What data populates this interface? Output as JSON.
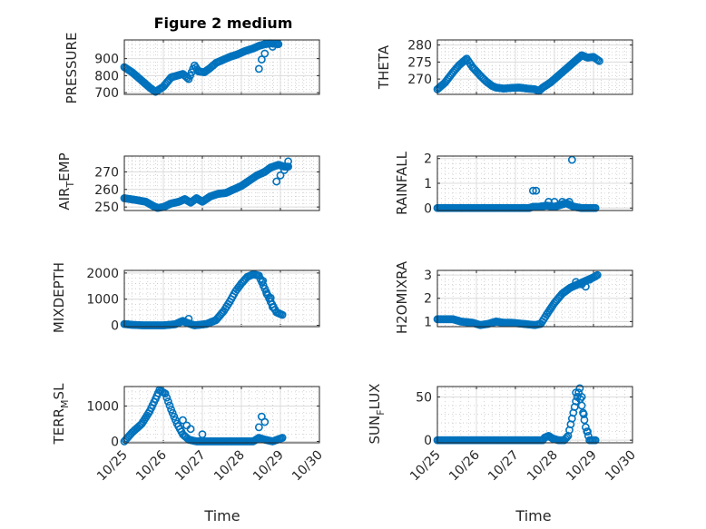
{
  "figure": {
    "title": "Figure 2 medium",
    "marker_color": "#0072bd",
    "x_tick_labels": [
      "10/25",
      "10/26",
      "10/27",
      "10/28",
      "10/29",
      "10/30"
    ],
    "x_label": "Time"
  },
  "chart_data": [
    {
      "type": "scatter",
      "id": "pressure",
      "title": "Figure 2 medium",
      "ylabel": "PRESSURE",
      "xlabel": "",
      "xlim": [
        25,
        30
      ],
      "ylim": [
        690,
        1010
      ],
      "yticks": [
        700,
        800,
        900
      ],
      "ytick_labels": [
        "700",
        "800",
        "900"
      ],
      "grid": true,
      "anchors": [
        [
          25.0,
          850
        ],
        [
          25.2,
          820
        ],
        [
          25.45,
          770
        ],
        [
          25.65,
          730
        ],
        [
          25.8,
          705
        ],
        [
          26.0,
          735
        ],
        [
          26.2,
          790
        ],
        [
          26.35,
          800
        ],
        [
          26.5,
          810
        ],
        [
          26.65,
          780
        ],
        [
          26.8,
          860
        ],
        [
          26.9,
          825
        ],
        [
          27.05,
          820
        ],
        [
          27.2,
          845
        ],
        [
          27.35,
          875
        ],
        [
          27.5,
          890
        ],
        [
          27.7,
          910
        ],
        [
          27.9,
          925
        ],
        [
          28.1,
          945
        ],
        [
          28.3,
          960
        ],
        [
          28.45,
          975
        ],
        [
          28.6,
          985
        ],
        [
          28.75,
          990
        ],
        [
          28.95,
          985
        ]
      ],
      "extra": [
        [
          28.45,
          840
        ],
        [
          28.52,
          895
        ],
        [
          28.6,
          930
        ],
        [
          28.7,
          990
        ],
        [
          28.8,
          970
        ]
      ]
    },
    {
      "type": "scatter",
      "id": "theta",
      "title": "",
      "ylabel": "THETA",
      "xlabel": "",
      "xlim": [
        25,
        30
      ],
      "ylim": [
        265.5,
        281.5
      ],
      "yticks": [
        270,
        275,
        280
      ],
      "ytick_labels": [
        "270",
        "275",
        "280"
      ],
      "grid": true,
      "anchors": [
        [
          25.0,
          267
        ],
        [
          25.2,
          269
        ],
        [
          25.4,
          272
        ],
        [
          25.55,
          274
        ],
        [
          25.75,
          276
        ],
        [
          25.9,
          273.5
        ],
        [
          26.1,
          271
        ],
        [
          26.25,
          269.3
        ],
        [
          26.4,
          268
        ],
        [
          26.5,
          267.5
        ],
        [
          26.7,
          267.2
        ],
        [
          26.9,
          267.4
        ],
        [
          27.1,
          267.5
        ],
        [
          27.3,
          267.2
        ],
        [
          27.5,
          267
        ],
        [
          27.6,
          266.5
        ],
        [
          27.7,
          267.5
        ],
        [
          27.9,
          269
        ],
        [
          28.1,
          271
        ],
        [
          28.3,
          273
        ],
        [
          28.5,
          275
        ],
        [
          28.7,
          277
        ],
        [
          28.85,
          276.3
        ],
        [
          29.0,
          276.5
        ],
        [
          29.15,
          275.3
        ]
      ],
      "extra": []
    },
    {
      "type": "scatter",
      "id": "air_temp",
      "title": "",
      "ylabel": "AIR_TEMP",
      "xlabel": "",
      "xlim": [
        25,
        30
      ],
      "ylim": [
        248,
        279
      ],
      "yticks": [
        250,
        260,
        270
      ],
      "ytick_labels": [
        "250",
        "260",
        "270"
      ],
      "grid": true,
      "anchors": [
        [
          25.0,
          255
        ],
        [
          25.3,
          254
        ],
        [
          25.55,
          253
        ],
        [
          25.75,
          250.5
        ],
        [
          25.85,
          249.5
        ],
        [
          26.0,
          250
        ],
        [
          26.2,
          252
        ],
        [
          26.4,
          253
        ],
        [
          26.55,
          254.5
        ],
        [
          26.7,
          252.5
        ],
        [
          26.85,
          255
        ],
        [
          27.0,
          253
        ],
        [
          27.2,
          256
        ],
        [
          27.4,
          257.5
        ],
        [
          27.6,
          258
        ],
        [
          27.8,
          260
        ],
        [
          28.0,
          262
        ],
        [
          28.2,
          265
        ],
        [
          28.4,
          268
        ],
        [
          28.6,
          270
        ],
        [
          28.75,
          272.5
        ],
        [
          28.95,
          274
        ],
        [
          29.1,
          273
        ],
        [
          29.2,
          273
        ]
      ],
      "extra": [
        [
          28.9,
          264.5
        ],
        [
          29.0,
          268
        ],
        [
          29.1,
          271
        ],
        [
          29.2,
          276
        ]
      ]
    },
    {
      "type": "scatter",
      "id": "rainfall",
      "title": "",
      "ylabel": "RAINFALL",
      "xlabel": "",
      "xlim": [
        25,
        30
      ],
      "ylim": [
        -0.1,
        2.1
      ],
      "yticks": [
        0,
        1,
        2
      ],
      "ytick_labels": [
        "0",
        "1",
        "2"
      ],
      "grid": true,
      "anchors": [
        [
          25.0,
          0
        ],
        [
          27.35,
          0
        ],
        [
          27.45,
          0.05
        ],
        [
          27.6,
          0.05
        ],
        [
          27.8,
          0.1
        ],
        [
          28.0,
          0.05
        ],
        [
          28.3,
          0.2
        ],
        [
          28.5,
          0.05
        ],
        [
          28.7,
          0
        ],
        [
          29.05,
          0
        ]
      ],
      "extra": [
        [
          27.45,
          0.7
        ],
        [
          27.53,
          0.7
        ],
        [
          27.85,
          0.25
        ],
        [
          28.0,
          0.25
        ],
        [
          28.2,
          0.25
        ],
        [
          28.38,
          0.25
        ],
        [
          28.45,
          1.95
        ]
      ]
    },
    {
      "type": "scatter",
      "id": "mixdepth",
      "title": "",
      "ylabel": "MIXDEPTH",
      "xlabel": "",
      "xlim": [
        25,
        30
      ],
      "ylim": [
        -50,
        2100
      ],
      "yticks": [
        0,
        1000,
        2000
      ],
      "ytick_labels": [
        "0",
        "1000",
        "2000"
      ],
      "grid": true,
      "anchors": [
        [
          25.0,
          50
        ],
        [
          25.2,
          20
        ],
        [
          25.5,
          0
        ],
        [
          26.0,
          0
        ],
        [
          26.3,
          40
        ],
        [
          26.5,
          170
        ],
        [
          26.6,
          100
        ],
        [
          26.8,
          0
        ],
        [
          27.1,
          50
        ],
        [
          27.35,
          200
        ],
        [
          27.55,
          550
        ],
        [
          27.7,
          900
        ],
        [
          27.85,
          1300
        ],
        [
          28.0,
          1600
        ],
        [
          28.15,
          1850
        ],
        [
          28.3,
          1950
        ],
        [
          28.45,
          1900
        ],
        [
          28.6,
          1400
        ],
        [
          28.75,
          900
        ],
        [
          28.9,
          500
        ],
        [
          29.05,
          400
        ]
      ],
      "extra": [
        [
          26.65,
          250
        ],
        [
          28.55,
          1700
        ],
        [
          28.65,
          1200
        ],
        [
          28.75,
          1050
        ],
        [
          28.8,
          700
        ]
      ]
    },
    {
      "type": "scatter",
      "id": "h2omixra",
      "title": "",
      "ylabel": "H2OMIXRA",
      "xlabel": "",
      "xlim": [
        25,
        30
      ],
      "ylim": [
        0.78,
        3.2
      ],
      "yticks": [
        1,
        2,
        3
      ],
      "ytick_labels": [
        "1",
        "2",
        "3"
      ],
      "grid": true,
      "anchors": [
        [
          25.0,
          1.1
        ],
        [
          25.4,
          1.1
        ],
        [
          25.6,
          1.0
        ],
        [
          25.9,
          0.95
        ],
        [
          26.1,
          0.85
        ],
        [
          26.3,
          0.9
        ],
        [
          26.5,
          1.0
        ],
        [
          26.7,
          0.95
        ],
        [
          26.9,
          0.95
        ],
        [
          27.2,
          0.9
        ],
        [
          27.5,
          0.85
        ],
        [
          27.65,
          0.9
        ],
        [
          27.8,
          1.3
        ],
        [
          28.0,
          1.8
        ],
        [
          28.2,
          2.2
        ],
        [
          28.4,
          2.45
        ],
        [
          28.6,
          2.6
        ],
        [
          28.8,
          2.75
        ],
        [
          29.0,
          2.9
        ],
        [
          29.1,
          3.0
        ]
      ],
      "extra": [
        [
          28.55,
          2.7
        ],
        [
          28.7,
          2.6
        ],
        [
          28.8,
          2.5
        ],
        [
          28.9,
          2.8
        ]
      ]
    },
    {
      "type": "scatter",
      "id": "terr_msl",
      "title": "",
      "ylabel": "TERR_MSL",
      "xlabel": "",
      "xlim": [
        25,
        30
      ],
      "ylim": [
        -40,
        1550
      ],
      "yticks": [
        0,
        1000
      ],
      "ytick_labels": [
        "0",
        "1000"
      ],
      "grid": true,
      "anchors": [
        [
          25.0,
          0
        ],
        [
          25.2,
          250
        ],
        [
          25.45,
          500
        ],
        [
          25.65,
          850
        ],
        [
          25.8,
          1200
        ],
        [
          25.9,
          1450
        ],
        [
          26.05,
          1350
        ],
        [
          26.2,
          900
        ],
        [
          26.35,
          500
        ],
        [
          26.5,
          200
        ],
        [
          26.65,
          50
        ],
        [
          26.85,
          0
        ],
        [
          27.3,
          0
        ],
        [
          27.8,
          0
        ],
        [
          28.3,
          0
        ],
        [
          28.45,
          100
        ],
        [
          28.6,
          50
        ],
        [
          28.8,
          0
        ],
        [
          29.05,
          100
        ]
      ],
      "extra": [
        [
          26.5,
          600
        ],
        [
          26.6,
          450
        ],
        [
          26.7,
          350
        ],
        [
          27.0,
          200
        ],
        [
          28.45,
          400
        ],
        [
          28.52,
          700
        ],
        [
          28.6,
          550
        ]
      ]
    },
    {
      "type": "scatter",
      "id": "sun_flux",
      "title": "",
      "ylabel": "SUN_FLUX",
      "xlabel": "Time",
      "xlim": [
        25,
        30
      ],
      "ylim": [
        -3,
        62
      ],
      "yticks": [
        0,
        50
      ],
      "ytick_labels": [
        "0",
        "50"
      ],
      "grid": true,
      "anchors": [
        [
          25.0,
          0
        ],
        [
          26.5,
          0
        ],
        [
          27.7,
          0
        ],
        [
          27.75,
          3
        ],
        [
          27.85,
          5
        ],
        [
          27.95,
          2
        ],
        [
          28.1,
          0
        ],
        [
          28.25,
          0
        ],
        [
          28.35,
          5
        ],
        [
          28.45,
          25
        ],
        [
          28.55,
          45
        ],
        [
          28.62,
          55
        ],
        [
          28.7,
          40
        ],
        [
          28.8,
          15
        ],
        [
          28.9,
          0
        ],
        [
          29.05,
          0
        ]
      ],
      "extra": [
        [
          28.55,
          55
        ],
        [
          28.65,
          60
        ],
        [
          28.7,
          50
        ],
        [
          28.75,
          30
        ],
        [
          28.85,
          10
        ]
      ]
    }
  ]
}
